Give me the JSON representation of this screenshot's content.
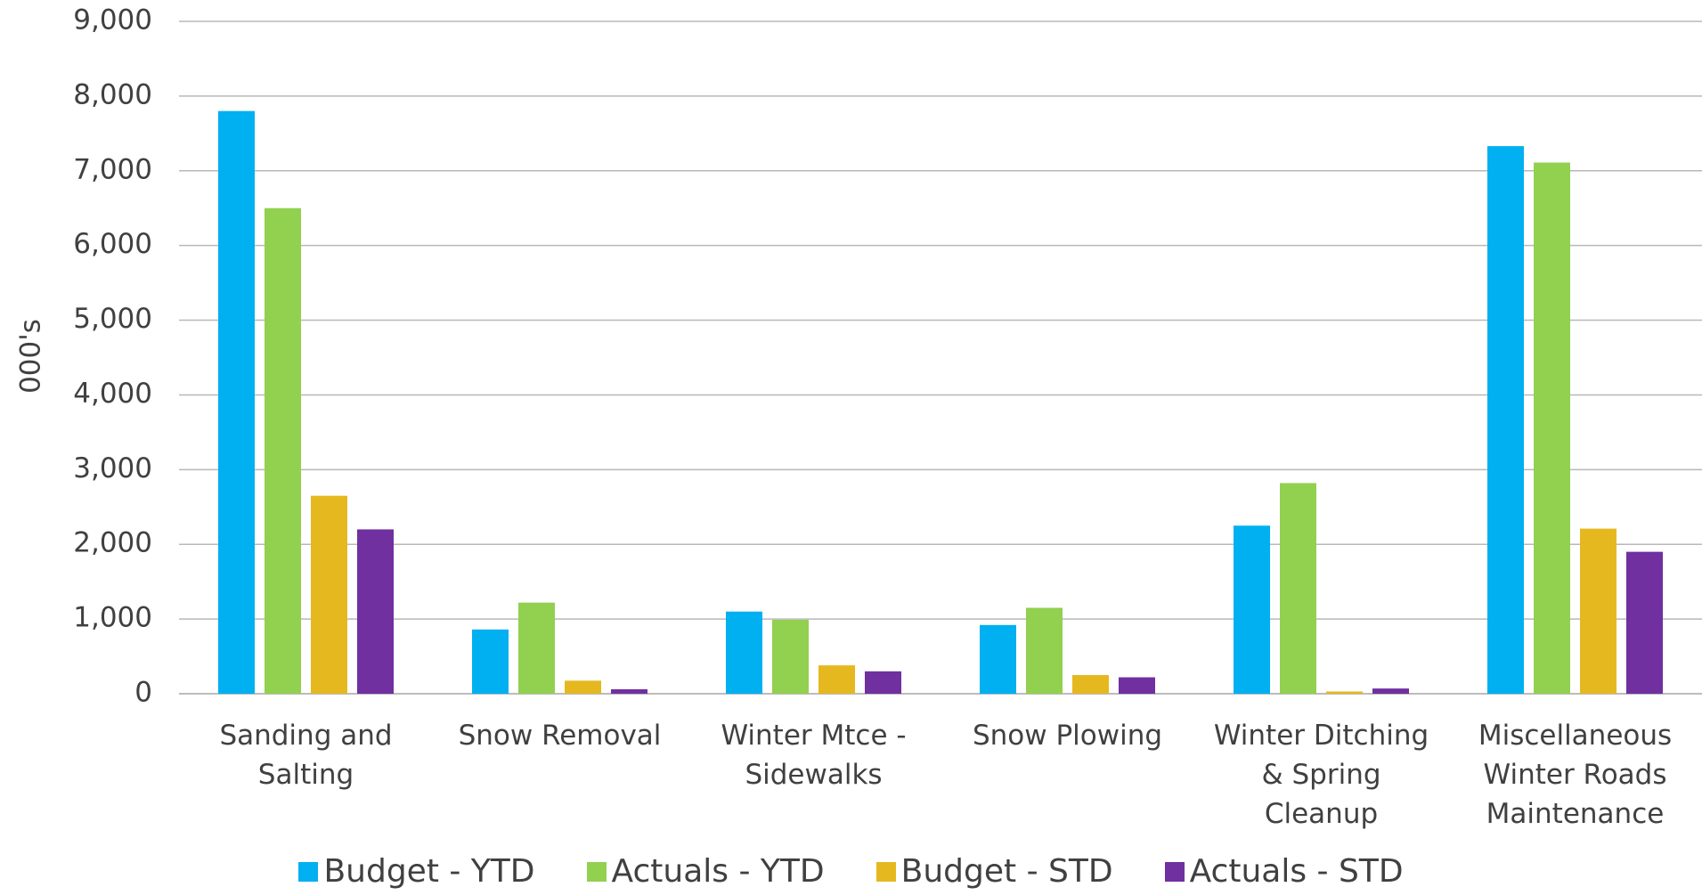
{
  "chart_data": {
    "type": "bar",
    "y_label": "000's",
    "categories": [
      "Sanding and Salting",
      "Snow Removal",
      "Winter Mtce - Sidewalks",
      "Snow Plowing",
      "Winter Ditching & Spring Cleanup",
      "Miscellaneous Winter Roads Maintenance"
    ],
    "series": [
      {
        "name": "Budget - YTD",
        "color": "#00b0f0",
        "values": [
          7800,
          860,
          1100,
          920,
          2250,
          7330
        ]
      },
      {
        "name": "Actuals - YTD",
        "color": "#92d050",
        "values": [
          6500,
          1220,
          990,
          1150,
          2820,
          7110
        ]
      },
      {
        "name": "Budget - STD",
        "color": "#e6b820",
        "values": [
          2650,
          175,
          380,
          250,
          30,
          2210
        ]
      },
      {
        "name": "Actuals - STD",
        "color": "#7030a0",
        "values": [
          2200,
          60,
          300,
          220,
          70,
          1900
        ]
      }
    ],
    "ylim": [
      0,
      9000
    ],
    "yticks": [
      0,
      {
        "value": 1000,
        "label": "1,000"
      },
      {
        "value": 2000,
        "label": "2,000"
      },
      {
        "value": 3000,
        "label": "3,000"
      },
      {
        "value": 4000,
        "label": "4,000"
      },
      {
        "value": 5000,
        "label": "5,000"
      },
      {
        "value": 6000,
        "label": "6,000"
      },
      {
        "value": 7000,
        "label": "7,000"
      },
      {
        "value": 8000,
        "label": "8,000"
      },
      {
        "value": 9000,
        "label": "9,000"
      }
    ],
    "grid": true,
    "legend": "bottom"
  }
}
